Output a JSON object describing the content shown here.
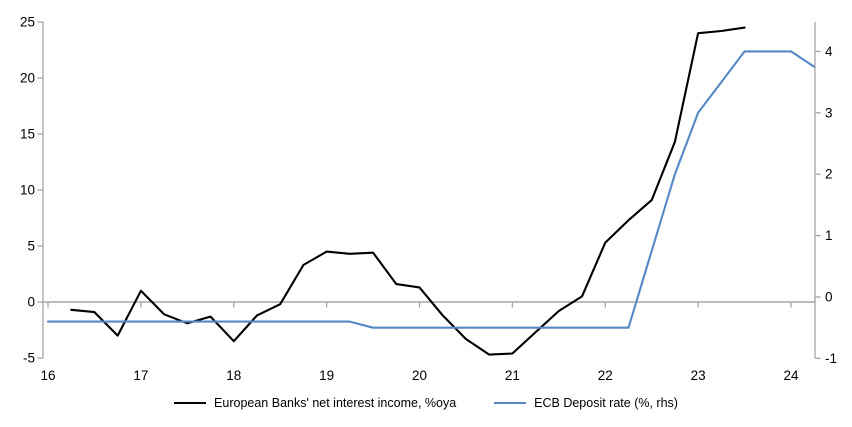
{
  "chart_data": {
    "type": "line",
    "title": "",
    "x_axis": {
      "ticks": [
        16,
        17,
        18,
        19,
        20,
        21,
        22,
        23,
        24
      ]
    },
    "left_axis": {
      "ticks": [
        25,
        20,
        15,
        10,
        5,
        0,
        -5
      ],
      "min": -5,
      "max": 25
    },
    "right_axis": {
      "ticks": [
        4,
        3,
        2,
        1,
        0,
        -1
      ],
      "min": -1,
      "max": 4
    },
    "grid": "zero-line-only",
    "legend_position": "bottom",
    "series": [
      {
        "name": "European Banks' net interest income, %oya",
        "axis": "left",
        "color": "#000000",
        "x": [
          16.25,
          16.5,
          16.75,
          17.0,
          17.25,
          17.5,
          17.75,
          18.0,
          18.25,
          18.5,
          18.75,
          19.0,
          19.25,
          19.5,
          19.75,
          20.0,
          20.25,
          20.5,
          20.75,
          21.0,
          21.25,
          21.5,
          21.75,
          22.0,
          22.25,
          22.5,
          22.75,
          23.0,
          23.25,
          23.5
        ],
        "values": [
          -0.7,
          -0.9,
          -3.0,
          1.0,
          -1.1,
          -1.9,
          -1.3,
          -3.5,
          -1.2,
          -0.2,
          3.3,
          4.5,
          4.3,
          4.4,
          1.6,
          1.3,
          -1.2,
          -3.3,
          -4.7,
          -4.6,
          -2.7,
          -0.8,
          0.5,
          5.3,
          7.3,
          9.1,
          14.3,
          24.0,
          24.2,
          24.5
        ]
      },
      {
        "name": "ECB Deposit rate (%, rhs)",
        "axis": "right",
        "color": "#5588C5",
        "x": [
          16.0,
          16.25,
          16.5,
          16.75,
          17.0,
          17.25,
          17.5,
          17.75,
          18.0,
          18.25,
          18.5,
          18.75,
          19.0,
          19.25,
          19.5,
          19.75,
          20.0,
          20.25,
          20.5,
          20.75,
          21.0,
          21.25,
          21.5,
          21.75,
          22.0,
          22.25,
          22.5,
          22.75,
          23.0,
          23.25,
          23.5,
          23.75,
          24.0,
          24.25
        ],
        "values": [
          -0.4,
          -0.4,
          -0.4,
          -0.4,
          -0.4,
          -0.4,
          -0.4,
          -0.4,
          -0.4,
          -0.4,
          -0.4,
          -0.4,
          -0.4,
          -0.4,
          -0.5,
          -0.5,
          -0.5,
          -0.5,
          -0.5,
          -0.5,
          -0.5,
          -0.5,
          -0.5,
          -0.5,
          -0.5,
          -0.5,
          0.75,
          2.0,
          3.0,
          3.5,
          4.0,
          4.0,
          4.0,
          3.75
        ]
      }
    ]
  },
  "colors": {
    "axis": "#A6A6A6",
    "background": "#FFFFFF",
    "text": "#000000"
  }
}
